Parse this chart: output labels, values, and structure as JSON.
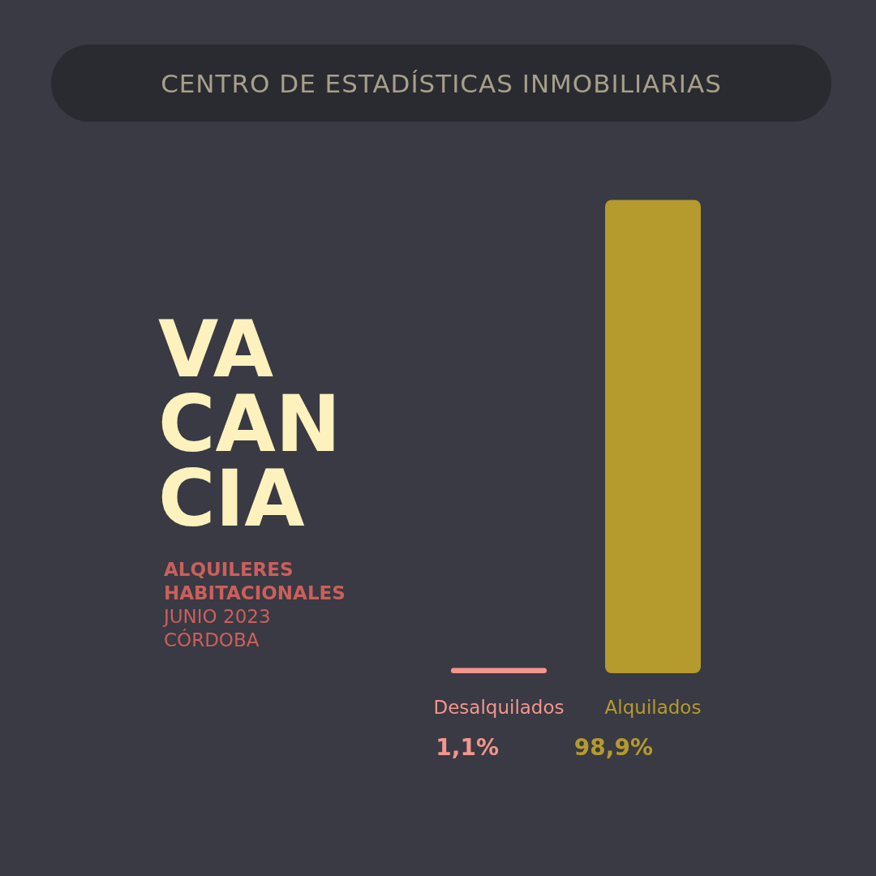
{
  "chart_data": {
    "type": "bar",
    "title": "CENTRO DE ESTADÍSTICAS INMOBILIARIAS",
    "subtitle": "VACANCIA",
    "annotations": [
      "ALQUILERES HABITACIONALES",
      "JUNIO 2023",
      "CÓRDOBA"
    ],
    "categories": [
      "Desalquilados",
      "Alquilados"
    ],
    "values": [
      1.1,
      98.9
    ],
    "colors": [
      "#f4958e",
      "#b59a2d"
    ],
    "value_labels": [
      "1,1%",
      "98,9%"
    ],
    "grid": false
  }
}
